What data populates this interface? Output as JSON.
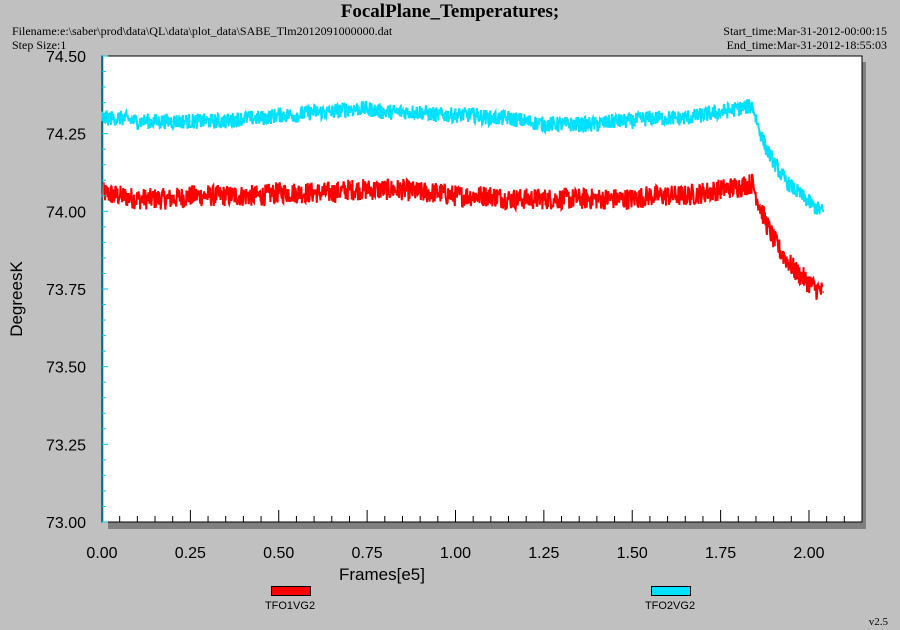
{
  "header": {
    "title": "FocalPlane_Temperatures;",
    "filename": "Filename:e:\\saber\\prod\\data\\QL\\data\\plot_data\\SABE_Tlm2012091000000.dat",
    "step_size": "Step Size:1",
    "start_time": "Start_time:Mar-31-2012-00:00:15",
    "end_time": "End_time:Mar-31-2012-18:55:03"
  },
  "footer": {
    "version": "v2.5"
  },
  "chart_data": {
    "type": "line",
    "title": "FocalPlane_Temperatures;",
    "xlabel": "Frames[e5]",
    "ylabel": "DegreesK",
    "xlim": [
      0.0,
      2.15
    ],
    "ylim": [
      73.0,
      74.5
    ],
    "x_ticks": [
      "0.00",
      "0.25",
      "0.50",
      "0.75",
      "1.00",
      "1.25",
      "1.50",
      "1.75",
      "2.00"
    ],
    "y_ticks": [
      "73.00",
      "73.25",
      "73.50",
      "73.75",
      "74.00",
      "74.25",
      "74.50"
    ],
    "grid": false,
    "legend_position": "bottom",
    "x": [
      0.0,
      0.05,
      0.1,
      0.15,
      0.2,
      0.25,
      0.3,
      0.35,
      0.4,
      0.45,
      0.5,
      0.55,
      0.6,
      0.65,
      0.7,
      0.75,
      0.8,
      0.85,
      0.9,
      0.95,
      1.0,
      1.05,
      1.1,
      1.15,
      1.2,
      1.25,
      1.3,
      1.35,
      1.4,
      1.45,
      1.5,
      1.55,
      1.6,
      1.65,
      1.7,
      1.75,
      1.8,
      1.84,
      1.86,
      1.88,
      1.9,
      1.92,
      1.94,
      1.96,
      1.98,
      2.0,
      2.02,
      2.04
    ],
    "series": [
      {
        "name": "TFO1VG2",
        "color": "#ff0000",
        "noise": 0.035,
        "values": [
          74.06,
          74.05,
          74.04,
          74.04,
          74.04,
          74.05,
          74.05,
          74.05,
          74.05,
          74.05,
          74.06,
          74.06,
          74.06,
          74.06,
          74.07,
          74.07,
          74.07,
          74.07,
          74.06,
          74.06,
          74.05,
          74.05,
          74.05,
          74.04,
          74.04,
          74.04,
          74.04,
          74.04,
          74.04,
          74.04,
          74.04,
          74.05,
          74.05,
          74.05,
          74.06,
          74.07,
          74.08,
          74.09,
          74.02,
          73.96,
          73.91,
          73.87,
          73.84,
          73.81,
          73.79,
          73.77,
          73.75,
          73.74
        ]
      },
      {
        "name": "TFO2VG2",
        "color": "#00e0ff",
        "noise": 0.025,
        "values": [
          74.3,
          74.3,
          74.29,
          74.29,
          74.29,
          74.29,
          74.29,
          74.29,
          74.3,
          74.3,
          74.31,
          74.31,
          74.32,
          74.32,
          74.33,
          74.33,
          74.32,
          74.32,
          74.32,
          74.31,
          74.31,
          74.31,
          74.3,
          74.3,
          74.29,
          74.28,
          74.28,
          74.28,
          74.28,
          74.29,
          74.29,
          74.3,
          74.3,
          74.3,
          74.31,
          74.32,
          74.33,
          74.34,
          74.26,
          74.2,
          74.16,
          74.12,
          74.09,
          74.07,
          74.05,
          74.03,
          74.01,
          74.0
        ]
      }
    ]
  }
}
